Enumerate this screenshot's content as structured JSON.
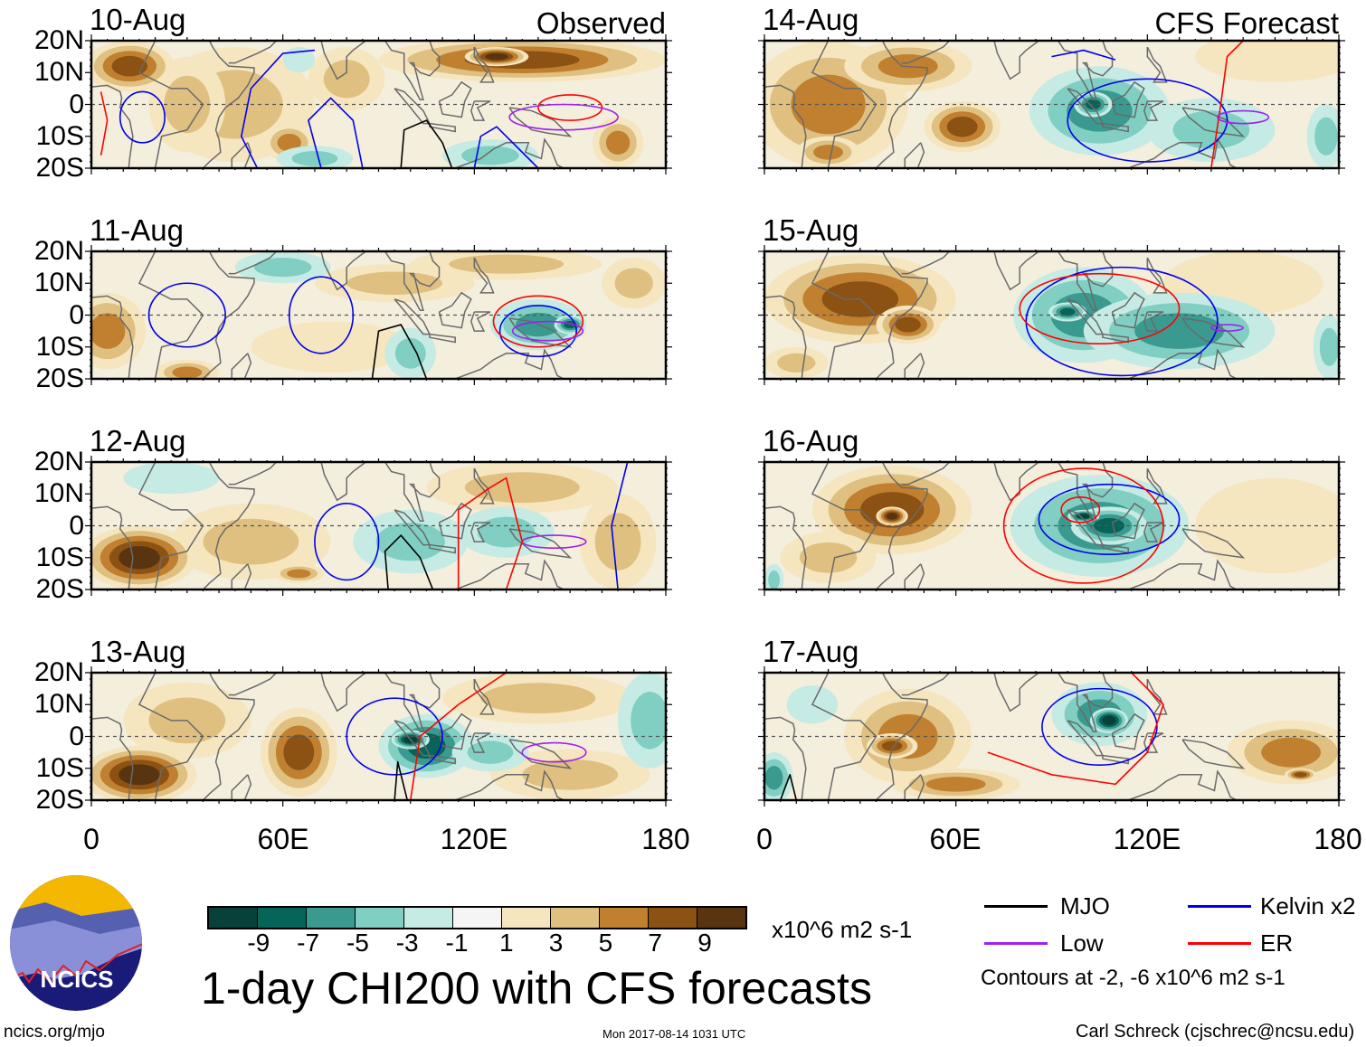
{
  "header": {
    "observed_label": "Observed",
    "forecast_label": "CFS Forecast"
  },
  "lat_labels": [
    "20N",
    "10N",
    "0",
    "10S",
    "20S"
  ],
  "lon_labels": [
    "0",
    "60E",
    "120E",
    "180"
  ],
  "panels": [
    {
      "date": "10-Aug",
      "column": "observed",
      "row": 0,
      "blobs": [
        [
          45,
          0,
          25,
          18,
          3
        ],
        [
          80,
          8,
          12,
          10,
          3
        ],
        [
          30,
          0,
          12,
          15,
          4
        ],
        [
          12,
          12,
          14,
          8,
          8
        ],
        [
          62,
          -12,
          8,
          6,
          5
        ],
        [
          135,
          14,
          45,
          7,
          7
        ],
        [
          127,
          15,
          10,
          3,
          10
        ],
        [
          165,
          -12,
          8,
          8,
          6
        ],
        [
          125,
          -16,
          15,
          5,
          -4
        ],
        [
          70,
          -17,
          12,
          4,
          -3
        ],
        [
          65,
          14,
          5,
          4,
          -2
        ]
      ],
      "contours": [
        {
          "type": "kelvin",
          "ellipse": [
            16,
            -4,
            7,
            8
          ]
        },
        {
          "type": "kelvin",
          "pts": [
            [
              52,
              -20
            ],
            [
              47,
              -10
            ],
            [
              50,
              5
            ],
            [
              60,
              16
            ],
            [
              70,
              17
            ]
          ]
        },
        {
          "type": "kelvin",
          "pts": [
            [
              72,
              -20
            ],
            [
              68,
              -5
            ],
            [
              75,
              2
            ],
            [
              82,
              -5
            ],
            [
              85,
              -20
            ]
          ]
        },
        {
          "type": "mjo",
          "pts": [
            [
              97,
              -20
            ],
            [
              98,
              -8
            ],
            [
              105,
              -5
            ],
            [
              110,
              -12
            ],
            [
              113,
              -20
            ]
          ]
        },
        {
          "type": "er",
          "ellipse": [
            150,
            -1,
            10,
            4
          ]
        },
        {
          "type": "low",
          "ellipse": [
            148,
            -4,
            17,
            4
          ]
        },
        {
          "type": "er",
          "pts": [
            [
              3,
              4
            ],
            [
              5,
              -5
            ],
            [
              3,
              -16
            ]
          ]
        },
        {
          "type": "kelvin",
          "pts": [
            [
              120,
              -20
            ],
            [
              122,
              -10
            ],
            [
              127,
              -7
            ],
            [
              135,
              -15
            ],
            [
              140,
              -20
            ]
          ]
        }
      ]
    },
    {
      "date": "11-Aug",
      "column": "observed",
      "row": 1,
      "blobs": [
        [
          75,
          -10,
          25,
          8,
          2
        ],
        [
          95,
          10,
          25,
          6,
          3
        ],
        [
          130,
          16,
          30,
          5,
          4
        ],
        [
          170,
          10,
          10,
          8,
          3
        ],
        [
          5,
          -5,
          12,
          12,
          6
        ],
        [
          30,
          -18,
          10,
          4,
          6
        ],
        [
          60,
          15,
          15,
          5,
          -3
        ],
        [
          140,
          -3,
          15,
          8,
          -5
        ],
        [
          150,
          -3,
          5,
          3,
          -7
        ],
        [
          100,
          -12,
          8,
          8,
          -4
        ]
      ],
      "contours": [
        {
          "type": "kelvin",
          "ellipse": [
            30,
            0,
            12,
            10
          ]
        },
        {
          "type": "kelvin",
          "ellipse": [
            72,
            0,
            10,
            12
          ]
        },
        {
          "type": "kelvin",
          "ellipse": [
            140,
            -5,
            12,
            8
          ]
        },
        {
          "type": "mjo",
          "pts": [
            [
              88,
              -20
            ],
            [
              90,
              -5
            ],
            [
              97,
              -3
            ],
            [
              102,
              -12
            ],
            [
              105,
              -20
            ]
          ]
        },
        {
          "type": "er",
          "ellipse": [
            140,
            -2,
            14,
            8
          ]
        },
        {
          "type": "low",
          "ellipse": [
            143,
            -5,
            11,
            3
          ]
        }
      ]
    },
    {
      "date": "12-Aug",
      "column": "observed",
      "row": 2,
      "blobs": [
        [
          50,
          -5,
          25,
          12,
          3
        ],
        [
          135,
          12,
          30,
          8,
          3
        ],
        [
          165,
          -5,
          12,
          15,
          3
        ],
        [
          15,
          -10,
          18,
          10,
          10
        ],
        [
          65,
          -15,
          8,
          3,
          5
        ],
        [
          100,
          -10,
          10,
          5,
          3
        ],
        [
          25,
          15,
          15,
          5,
          -2
        ],
        [
          100,
          -5,
          18,
          10,
          -4
        ],
        [
          130,
          -2,
          15,
          8,
          -3
        ]
      ],
      "contours": [
        {
          "type": "kelvin",
          "ellipse": [
            80,
            -5,
            10,
            12
          ]
        },
        {
          "type": "mjo",
          "pts": [
            [
              93,
              -20
            ],
            [
              92,
              -8
            ],
            [
              97,
              -3
            ],
            [
              103,
              -10
            ],
            [
              107,
              -20
            ]
          ]
        },
        {
          "type": "low",
          "ellipse": [
            145,
            -5,
            10,
            2
          ]
        },
        {
          "type": "er",
          "pts": [
            [
              115,
              -20
            ],
            [
              115,
              5
            ],
            [
              125,
              12
            ],
            [
              130,
              15
            ],
            [
              135,
              -5
            ],
            [
              130,
              -20
            ]
          ]
        },
        {
          "type": "kelvin",
          "pts": [
            [
              165,
              -20
            ],
            [
              163,
              0
            ],
            [
              168,
              20
            ]
          ]
        }
      ]
    },
    {
      "date": "13-Aug",
      "column": "observed",
      "row": 3,
      "blobs": [
        [
          30,
          5,
          20,
          12,
          3
        ],
        [
          140,
          12,
          30,
          8,
          3
        ],
        [
          15,
          -12,
          18,
          9,
          10
        ],
        [
          65,
          -5,
          12,
          14,
          7
        ],
        [
          150,
          -12,
          25,
          8,
          4
        ],
        [
          105,
          -3,
          15,
          10,
          -7
        ],
        [
          100,
          -1,
          6,
          3,
          -9
        ],
        [
          175,
          5,
          10,
          15,
          -4
        ],
        [
          125,
          -5,
          12,
          6,
          -3
        ]
      ],
      "contours": [
        {
          "type": "kelvin",
          "ellipse": [
            95,
            0,
            15,
            12
          ]
        },
        {
          "type": "er",
          "pts": [
            [
              100,
              -20
            ],
            [
              103,
              0
            ],
            [
              115,
              10
            ],
            [
              130,
              20
            ]
          ]
        },
        {
          "type": "low",
          "ellipse": [
            145,
            -5,
            10,
            3
          ]
        },
        {
          "type": "mjo",
          "pts": [
            [
              95,
              -20
            ],
            [
              96,
              -8
            ],
            [
              99,
              -20
            ]
          ]
        }
      ]
    },
    {
      "date": "14-Aug",
      "column": "forecast",
      "row": 0,
      "blobs": [
        [
          20,
          0,
          25,
          20,
          6
        ],
        [
          45,
          12,
          20,
          8,
          5
        ],
        [
          160,
          15,
          25,
          8,
          2
        ],
        [
          62,
          -7,
          12,
          8,
          8
        ],
        [
          20,
          -15,
          10,
          5,
          6
        ],
        [
          105,
          -2,
          22,
          14,
          -6
        ],
        [
          103,
          0,
          6,
          4,
          -8
        ],
        [
          140,
          -8,
          20,
          10,
          -4
        ],
        [
          176,
          -10,
          6,
          10,
          -4
        ]
      ],
      "contours": [
        {
          "type": "kelvin",
          "ellipse": [
            120,
            -5,
            25,
            13
          ]
        },
        {
          "type": "er",
          "pts": [
            [
              140,
              -20
            ],
            [
              143,
              0
            ],
            [
              145,
              15
            ],
            [
              150,
              20
            ]
          ]
        },
        {
          "type": "low",
          "ellipse": [
            150,
            -4,
            8,
            2
          ]
        },
        {
          "type": "kelvin",
          "pts": [
            [
              90,
              15
            ],
            [
              100,
              17
            ],
            [
              110,
              14
            ]
          ]
        }
      ]
    },
    {
      "date": "15-Aug",
      "column": "forecast",
      "row": 1,
      "blobs": [
        [
          150,
          10,
          25,
          10,
          2
        ],
        [
          30,
          5,
          30,
          14,
          7
        ],
        [
          45,
          -3,
          10,
          6,
          8
        ],
        [
          10,
          -15,
          10,
          5,
          3
        ],
        [
          100,
          0,
          22,
          15,
          -6
        ],
        [
          95,
          1,
          6,
          3,
          -8
        ],
        [
          130,
          -5,
          30,
          12,
          -5
        ],
        [
          177,
          -10,
          5,
          10,
          -4
        ]
      ],
      "contours": [
        {
          "type": "kelvin",
          "ellipse": [
            112,
            -2,
            30,
            17
          ]
        },
        {
          "type": "er",
          "ellipse": [
            105,
            2,
            25,
            11
          ]
        },
        {
          "type": "low",
          "ellipse": [
            145,
            -4,
            5,
            1
          ]
        }
      ]
    },
    {
      "date": "16-Aug",
      "column": "forecast",
      "row": 2,
      "blobs": [
        [
          160,
          0,
          25,
          15,
          2
        ],
        [
          40,
          5,
          25,
          14,
          7
        ],
        [
          40,
          3,
          5,
          3,
          9
        ],
        [
          20,
          -10,
          15,
          8,
          4
        ],
        [
          105,
          0,
          28,
          16,
          -6
        ],
        [
          108,
          0,
          12,
          6,
          -8
        ],
        [
          100,
          3,
          5,
          2,
          -9
        ],
        [
          3,
          -17,
          3,
          5,
          -4
        ]
      ],
      "contours": [
        {
          "type": "kelvin",
          "ellipse": [
            108,
            2,
            22,
            11
          ]
        },
        {
          "type": "er",
          "ellipse": [
            100,
            0,
            25,
            18
          ]
        },
        {
          "type": "er",
          "ellipse": [
            99,
            5,
            6,
            4
          ]
        }
      ]
    },
    {
      "date": "17-Aug",
      "column": "forecast",
      "row": 3,
      "blobs": [
        [
          45,
          0,
          20,
          15,
          6
        ],
        [
          40,
          -3,
          8,
          4,
          8
        ],
        [
          60,
          -15,
          20,
          5,
          5
        ],
        [
          165,
          -5,
          20,
          10,
          6
        ],
        [
          168,
          -12,
          5,
          2,
          8
        ],
        [
          105,
          7,
          15,
          10,
          -6
        ],
        [
          108,
          5,
          6,
          4,
          -9
        ],
        [
          3,
          -13,
          6,
          8,
          -6
        ],
        [
          15,
          10,
          8,
          6,
          -2
        ]
      ],
      "contours": [
        {
          "type": "kelvin",
          "ellipse": [
            105,
            3,
            18,
            12
          ]
        },
        {
          "type": "er",
          "pts": [
            [
              70,
              -5
            ],
            [
              90,
              -12
            ],
            [
              110,
              -15
            ],
            [
              120,
              -5
            ],
            [
              125,
              10
            ],
            [
              115,
              20
            ]
          ]
        },
        {
          "type": "mjo",
          "pts": [
            [
              5,
              -20
            ],
            [
              8,
              -12
            ],
            [
              10,
              -20
            ]
          ]
        }
      ]
    }
  ],
  "colorbar": {
    "colors": [
      "#08403a",
      "#076459",
      "#3a9a90",
      "#80cfc2",
      "#c5ebe4",
      "#f5f5f5",
      "#f5e6c0",
      "#dfc080",
      "#c08030",
      "#8c5214",
      "#583510"
    ],
    "labels": [
      "-9",
      "-7",
      "-5",
      "-3",
      "-1",
      "1",
      "3",
      "5",
      "7",
      "9"
    ],
    "units": "x10^6 m2 s-1"
  },
  "title": "1-day CHI200 with CFS forecasts",
  "legend": {
    "items": [
      {
        "label": "MJO",
        "color": "#000000"
      },
      {
        "label": "Kelvin x2",
        "color": "#0000ee"
      },
      {
        "label": "Low",
        "color": "#a020f0"
      },
      {
        "label": "ER",
        "color": "#ff0000"
      }
    ],
    "note": "Contours at -2, -6 x10^6 m2 s-1"
  },
  "logo": {
    "text": "NCICS"
  },
  "footer": {
    "url": "ncics.org/mjo",
    "timestamp": "Mon 2017-08-14 1031 UTC",
    "credit": "Carl Schreck (cjschrec@ncsu.edu)"
  }
}
